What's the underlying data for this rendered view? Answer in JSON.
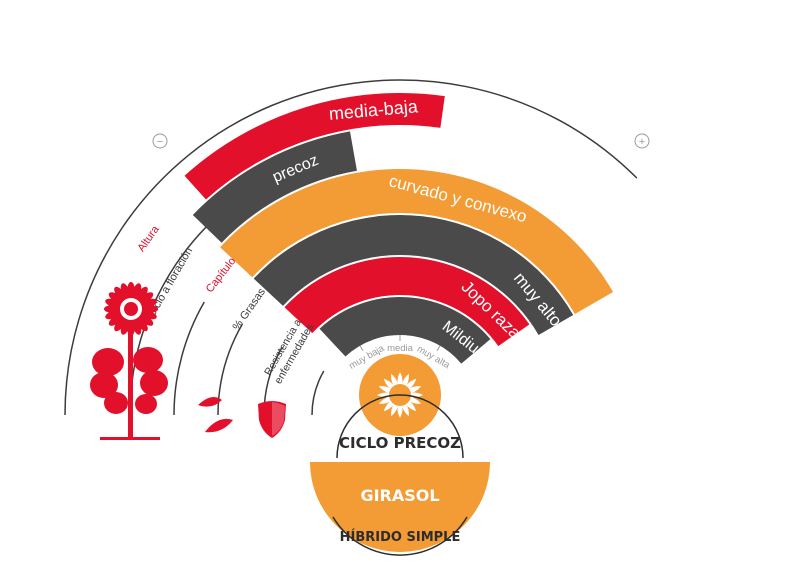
{
  "colors": {
    "red": "#e3102b",
    "orange": "#f39b34",
    "dark": "#4a4a4a",
    "line": "#3c3c3c",
    "grey_text": "#9a9a9a"
  },
  "scale": {
    "minus_symbol": "−",
    "plus_symbol": "+",
    "levels": [
      "muy baja",
      "media",
      "muy alta"
    ]
  },
  "categories": [
    {
      "label": "Altura",
      "value": "media-baja",
      "bar_color": "red",
      "label_color": "red"
    },
    {
      "label": "Ciclo a floración",
      "value": "precoz",
      "bar_color": "dark",
      "label_color": "dark"
    },
    {
      "label": "Capítulo",
      "value": "curvado y convexo",
      "bar_color": "orange",
      "label_color": "red"
    },
    {
      "label": "% Grasas",
      "value": "muy alto",
      "bar_color": "dark",
      "label_color": "dark"
    },
    {
      "label": "Resistencia a",
      "label2": "enfermedades",
      "value": "Jopo raza F",
      "bar_color": "red",
      "label_color": "dark"
    },
    {
      "label": "",
      "value": "Mildiu",
      "bar_color": "dark",
      "label_color": "dark"
    }
  ],
  "icons": [
    "sunflower-plant-icon",
    "seeds-icon",
    "shield-icon",
    "sunflower-logo-icon"
  ],
  "badge": {
    "title": "CICLO PRECOZ",
    "product": "GIRASOL",
    "subtitle": "HÍBRIDO SIMPLE"
  }
}
